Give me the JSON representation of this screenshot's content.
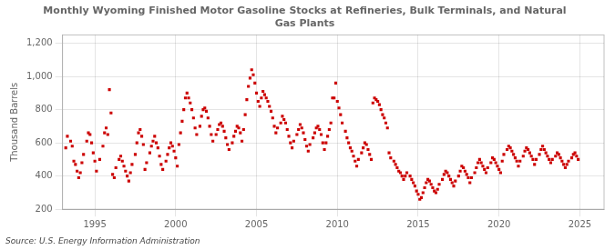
{
  "chart_data": {
    "type": "scatter",
    "title": "Monthly Wyoming Finished Motor Gasoline Stocks at Refineries, Bulk Terminals, and Natural\nGas Plants",
    "ylabel": "Thousand Barrels",
    "annotations": [
      "Source: U.S. Energy Information Administration"
    ],
    "color": "#cc0000",
    "marker": "square",
    "grid": true,
    "xlim": [
      1993.0,
      2026.5
    ],
    "xticks": [
      1995,
      2000,
      2005,
      2010,
      2015,
      2020,
      2025
    ],
    "ylim": [
      200,
      1250
    ],
    "yticks": [
      200,
      400,
      600,
      800,
      {
        "value": 1000,
        "label": "1,000"
      },
      {
        "value": 1200,
        "label": "1,200"
      }
    ],
    "x": [
      1993.2,
      1993.3,
      1993.5,
      1993.6,
      1993.7,
      1993.8,
      1993.9,
      1994.0,
      1994.1,
      1994.2,
      1994.3,
      1994.5,
      1994.6,
      1994.7,
      1994.8,
      1994.9,
      1995.0,
      1995.1,
      1995.3,
      1995.5,
      1995.6,
      1995.7,
      1995.8,
      1995.9,
      1996.0,
      1996.1,
      1996.2,
      1996.3,
      1996.5,
      1996.6,
      1996.7,
      1996.8,
      1996.9,
      1997.0,
      1997.1,
      1997.2,
      1997.3,
      1997.5,
      1997.6,
      1997.7,
      1997.8,
      1997.9,
      1998.0,
      1998.1,
      1998.2,
      1998.4,
      1998.5,
      1998.6,
      1998.7,
      1998.8,
      1998.9,
      1999.0,
      1999.1,
      1999.2,
      1999.4,
      1999.5,
      1999.6,
      1999.7,
      1999.8,
      1999.9,
      2000.0,
      2000.1,
      2000.2,
      2000.3,
      2000.4,
      2000.5,
      2000.6,
      2000.7,
      2000.8,
      2000.9,
      2001.0,
      2001.1,
      2001.2,
      2001.3,
      2001.5,
      2001.6,
      2001.7,
      2001.8,
      2001.9,
      2002.0,
      2002.1,
      2002.2,
      2002.3,
      2002.5,
      2002.6,
      2002.7,
      2002.8,
      2002.9,
      2003.0,
      2003.1,
      2003.2,
      2003.3,
      2003.5,
      2003.6,
      2003.7,
      2003.8,
      2003.9,
      2004.0,
      2004.1,
      2004.2,
      2004.3,
      2004.4,
      2004.5,
      2004.6,
      2004.7,
      2004.8,
      2004.9,
      2005.0,
      2005.1,
      2005.2,
      2005.3,
      2005.4,
      2005.5,
      2005.6,
      2005.7,
      2005.8,
      2005.9,
      2006.0,
      2006.1,
      2006.2,
      2006.3,
      2006.5,
      2006.6,
      2006.7,
      2006.8,
      2006.9,
      2007.0,
      2007.1,
      2007.2,
      2007.3,
      2007.5,
      2007.6,
      2007.7,
      2007.8,
      2007.9,
      2008.0,
      2008.1,
      2008.2,
      2008.3,
      2008.5,
      2008.6,
      2008.7,
      2008.8,
      2008.9,
      2009.0,
      2009.1,
      2009.2,
      2009.3,
      2009.4,
      2009.5,
      2009.6,
      2009.7,
      2009.8,
      2009.9,
      2010.0,
      2010.1,
      2010.2,
      2010.3,
      2010.5,
      2010.6,
      2010.7,
      2010.8,
      2010.9,
      2011.0,
      2011.1,
      2011.2,
      2011.3,
      2011.5,
      2011.6,
      2011.7,
      2011.8,
      2011.9,
      2012.0,
      2012.1,
      2012.2,
      2012.3,
      2012.4,
      2012.5,
      2012.6,
      2012.7,
      2012.8,
      2012.9,
      2013.0,
      2013.1,
      2013.2,
      2013.3,
      2013.5,
      2013.6,
      2013.7,
      2013.8,
      2013.9,
      2014.0,
      2014.1,
      2014.2,
      2014.3,
      2014.5,
      2014.6,
      2014.7,
      2014.8,
      2014.9,
      2015.0,
      2015.1,
      2015.2,
      2015.3,
      2015.4,
      2015.5,
      2015.6,
      2015.7,
      2015.8,
      2015.9,
      2016.0,
      2016.1,
      2016.2,
      2016.3,
      2016.5,
      2016.6,
      2016.7,
      2016.8,
      2016.9,
      2017.0,
      2017.1,
      2017.2,
      2017.3,
      2017.5,
      2017.6,
      2017.7,
      2017.8,
      2017.9,
      2018.0,
      2018.1,
      2018.2,
      2018.3,
      2018.5,
      2018.6,
      2018.7,
      2018.8,
      2018.9,
      2019.0,
      2019.1,
      2019.2,
      2019.3,
      2019.5,
      2019.6,
      2019.7,
      2019.8,
      2019.9,
      2020.0,
      2020.1,
      2020.2,
      2020.3,
      2020.5,
      2020.6,
      2020.7,
      2020.8,
      2020.9,
      2021.0,
      2021.1,
      2021.2,
      2021.3,
      2021.5,
      2021.6,
      2021.7,
      2021.8,
      2021.9,
      2022.0,
      2022.1,
      2022.2,
      2022.3,
      2022.5,
      2022.6,
      2022.7,
      2022.8,
      2022.9,
      2023.0,
      2023.1,
      2023.2,
      2023.3,
      2023.5,
      2023.6,
      2023.7,
      2023.8,
      2023.9,
      2024.0,
      2024.1,
      2024.2,
      2024.3,
      2024.5,
      2024.6,
      2024.7,
      2024.8,
      2024.9
    ],
    "values": [
      570,
      640,
      610,
      580,
      490,
      470,
      430,
      390,
      420,
      480,
      530,
      610,
      660,
      650,
      600,
      540,
      490,
      430,
      500,
      580,
      660,
      690,
      650,
      920,
      780,
      410,
      390,
      450,
      500,
      520,
      490,
      460,
      430,
      400,
      370,
      420,
      470,
      530,
      600,
      660,
      680,
      640,
      590,
      440,
      480,
      540,
      580,
      610,
      640,
      600,
      570,
      520,
      470,
      440,
      490,
      530,
      570,
      600,
      580,
      550,
      510,
      460,
      590,
      660,
      730,
      800,
      870,
      900,
      870,
      840,
      800,
      750,
      690,
      650,
      700,
      760,
      800,
      810,
      790,
      750,
      700,
      650,
      610,
      650,
      680,
      710,
      720,
      700,
      670,
      630,
      590,
      560,
      600,
      640,
      670,
      700,
      690,
      660,
      610,
      680,
      770,
      860,
      940,
      990,
      1040,
      1010,
      960,
      900,
      850,
      820,
      870,
      910,
      890,
      870,
      850,
      820,
      790,
      750,
      700,
      660,
      690,
      720,
      760,
      740,
      720,
      680,
      640,
      600,
      570,
      610,
      650,
      680,
      710,
      690,
      660,
      620,
      580,
      550,
      590,
      630,
      660,
      690,
      700,
      680,
      650,
      600,
      560,
      600,
      640,
      680,
      720,
      870,
      870,
      960,
      850,
      810,
      770,
      720,
      670,
      630,
      600,
      570,
      550,
      520,
      490,
      460,
      500,
      540,
      570,
      600,
      590,
      560,
      530,
      500,
      840,
      870,
      860,
      850,
      830,
      800,
      770,
      750,
      720,
      690,
      540,
      510,
      490,
      470,
      450,
      430,
      420,
      400,
      380,
      400,
      420,
      400,
      380,
      360,
      340,
      310,
      290,
      260,
      270,
      300,
      330,
      360,
      380,
      370,
      350,
      330,
      310,
      300,
      320,
      350,
      380,
      410,
      430,
      420,
      400,
      380,
      360,
      340,
      370,
      400,
      430,
      460,
      450,
      430,
      410,
      390,
      360,
      390,
      420,
      450,
      480,
      500,
      480,
      460,
      440,
      420,
      450,
      480,
      510,
      500,
      480,
      460,
      440,
      420,
      490,
      530,
      560,
      580,
      570,
      550,
      530,
      510,
      490,
      460,
      490,
      520,
      550,
      570,
      560,
      540,
      520,
      500,
      470,
      500,
      530,
      560,
      580,
      560,
      540,
      520,
      500,
      480,
      500,
      520,
      540,
      530,
      510,
      490,
      470,
      450,
      470,
      490,
      510,
      530,
      540,
      520,
      500
    ]
  }
}
